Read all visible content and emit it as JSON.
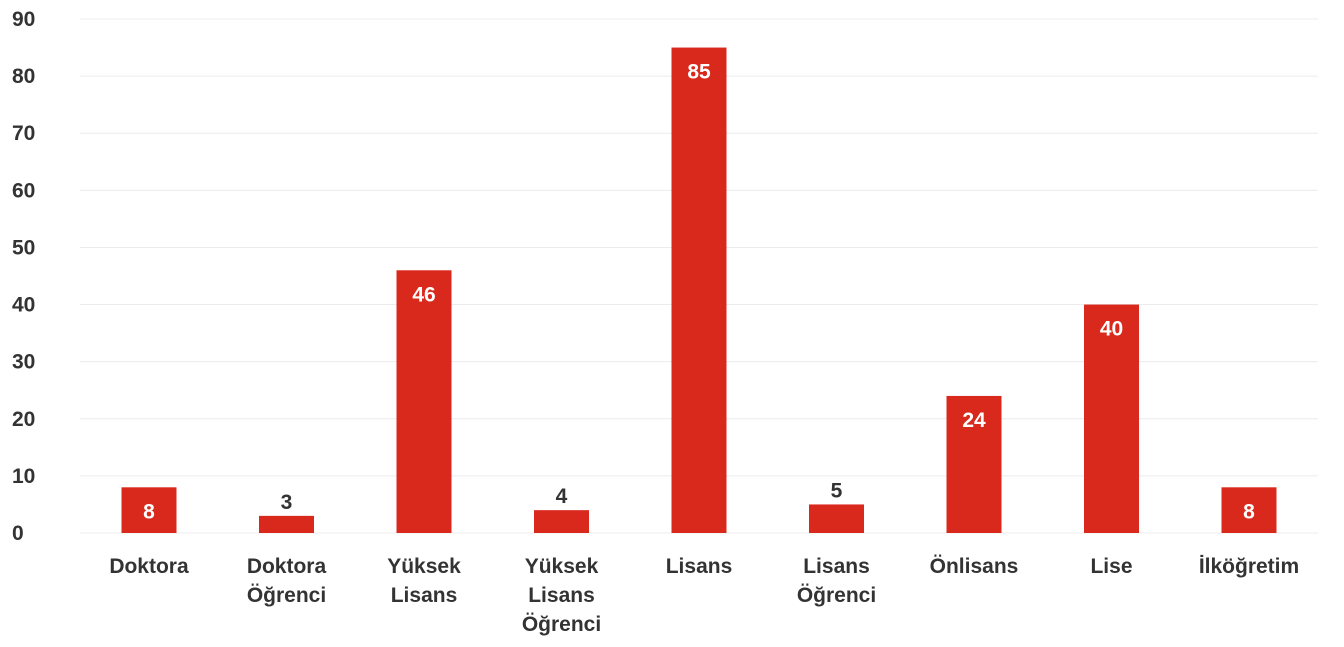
{
  "chart_data": {
    "type": "bar",
    "categories": [
      [
        "Doktora"
      ],
      [
        "Doktora",
        "Öğrenci"
      ],
      [
        "Yüksek",
        "Lisans"
      ],
      [
        "Yüksek",
        "Lisans",
        "Öğrenci"
      ],
      [
        "Lisans"
      ],
      [
        "Lisans",
        "Öğrenci"
      ],
      [
        "Önlisans"
      ],
      [
        "Lise"
      ],
      [
        "İlköğretim"
      ]
    ],
    "values": [
      8,
      3,
      46,
      4,
      85,
      5,
      24,
      40,
      8
    ],
    "ylim": [
      0,
      90
    ],
    "yticks": [
      0,
      10,
      20,
      30,
      40,
      50,
      60,
      70,
      80,
      90
    ],
    "grid": true,
    "title": "",
    "xlabel": "",
    "ylabel": "",
    "colors": {
      "bar": "#d9281c",
      "label_inside": "#ffffff",
      "label_outside": "#333333"
    }
  }
}
